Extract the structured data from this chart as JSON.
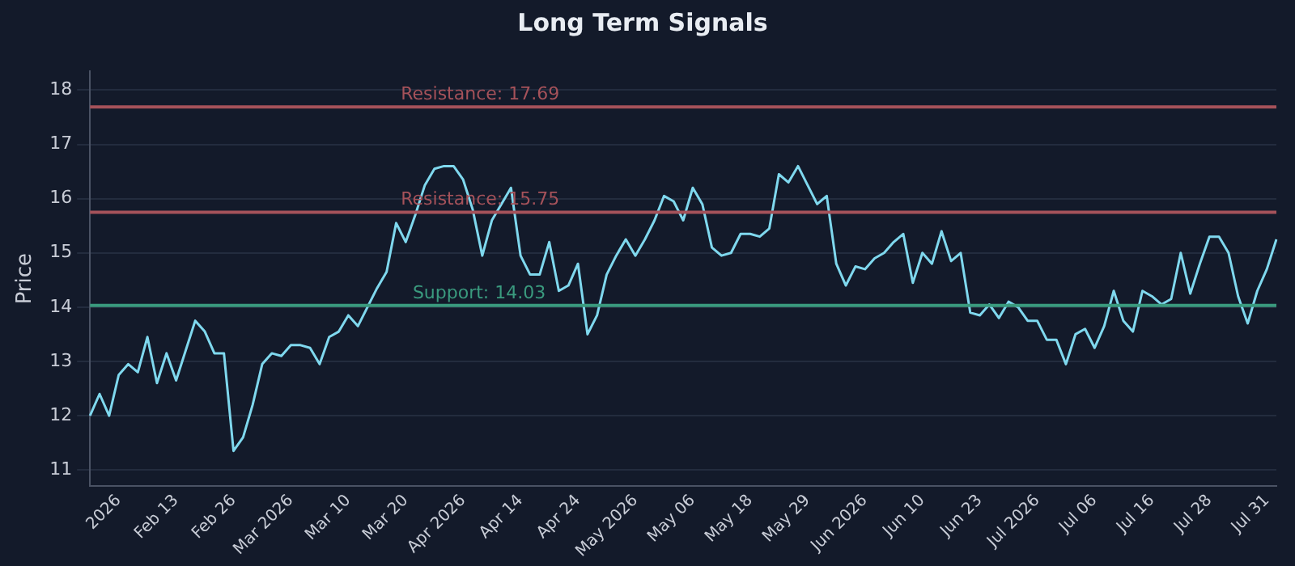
{
  "chart_data": {
    "type": "line",
    "title": "Long Term Signals",
    "ylabel": "Price",
    "categories": [
      null,
      null,
      null,
      "2026",
      null,
      null,
      null,
      null,
      null,
      "Feb 13",
      null,
      null,
      null,
      null,
      null,
      "Feb 26",
      null,
      null,
      null,
      null,
      null,
      "Mar 2026",
      null,
      null,
      null,
      null,
      null,
      "Mar 10",
      null,
      null,
      null,
      null,
      null,
      "Mar 20",
      null,
      null,
      null,
      null,
      null,
      "Apr 2026",
      null,
      null,
      null,
      null,
      null,
      "Apr 14",
      null,
      null,
      null,
      null,
      null,
      "Apr 24",
      null,
      null,
      null,
      null,
      null,
      "May 2026",
      null,
      null,
      null,
      null,
      null,
      "May 06",
      null,
      null,
      null,
      null,
      null,
      "May 18",
      null,
      null,
      null,
      null,
      null,
      "May 29",
      null,
      null,
      null,
      null,
      null,
      "Jun 2026",
      null,
      null,
      null,
      null,
      null,
      "Jun 10",
      null,
      null,
      null,
      null,
      null,
      "Jun 23",
      null,
      null,
      null,
      null,
      null,
      "Jul 2026",
      null,
      null,
      null,
      null,
      null,
      "Jul 06",
      null,
      null,
      null,
      null,
      null,
      "Jul 16",
      null,
      null,
      null,
      null,
      null,
      "Jul 28",
      null,
      null,
      null,
      null,
      null,
      "Jul 31",
      null
    ],
    "series": [
      {
        "color": "#7fd8ee",
        "values": [
          12.0,
          12.4,
          12.0,
          12.75,
          12.95,
          12.8,
          13.45,
          12.6,
          13.15,
          12.65,
          13.2,
          13.75,
          13.55,
          13.15,
          13.15,
          11.35,
          11.6,
          12.2,
          12.95,
          13.15,
          13.1,
          13.3,
          13.3,
          13.25,
          12.95,
          13.45,
          13.55,
          13.85,
          13.65,
          14.0,
          14.35,
          14.65,
          15.55,
          15.2,
          15.7,
          16.25,
          16.55,
          16.6,
          16.6,
          16.35,
          15.8,
          14.95,
          15.6,
          15.9,
          16.2,
          14.95,
          14.6,
          14.6,
          15.2,
          14.3,
          14.4,
          14.8,
          13.5,
          13.85,
          14.6,
          14.95,
          15.25,
          14.95,
          15.25,
          15.6,
          16.05,
          15.95,
          15.6,
          16.2,
          15.9,
          15.1,
          14.95,
          15.0,
          15.35,
          15.35,
          15.3,
          15.45,
          16.45,
          16.3,
          16.6,
          16.25,
          15.9,
          16.05,
          14.8,
          14.4,
          14.75,
          14.7,
          14.9,
          15.0,
          15.2,
          15.35,
          14.45,
          15.0,
          14.8,
          15.4,
          14.85,
          15.0,
          13.9,
          13.85,
          14.05,
          13.8,
          14.1,
          14.0,
          13.75,
          13.75,
          13.4,
          13.4,
          12.95,
          13.5,
          13.6,
          13.25,
          13.65,
          14.3,
          13.75,
          13.55,
          14.3,
          14.2,
          14.05,
          14.15,
          15.0,
          14.25,
          14.8,
          15.3,
          15.3,
          15.0,
          14.2,
          13.7,
          14.3,
          14.7,
          15.25
        ]
      }
    ],
    "ylim": [
      10.7,
      18.35
    ],
    "yticks": [
      11,
      12,
      13,
      14,
      15,
      16,
      17,
      18
    ],
    "grid": "y",
    "legend": false,
    "ref_lines": [
      {
        "axis": "y",
        "value": 17.69,
        "label": "Resistance: 17.69",
        "color": "#a5525a"
      },
      {
        "axis": "y",
        "value": 15.75,
        "label": "Resistance: 15.75",
        "color": "#a5525a"
      },
      {
        "axis": "y",
        "value": 14.03,
        "label": "Support: 14.03",
        "color": "#3a9a7e"
      }
    ]
  }
}
